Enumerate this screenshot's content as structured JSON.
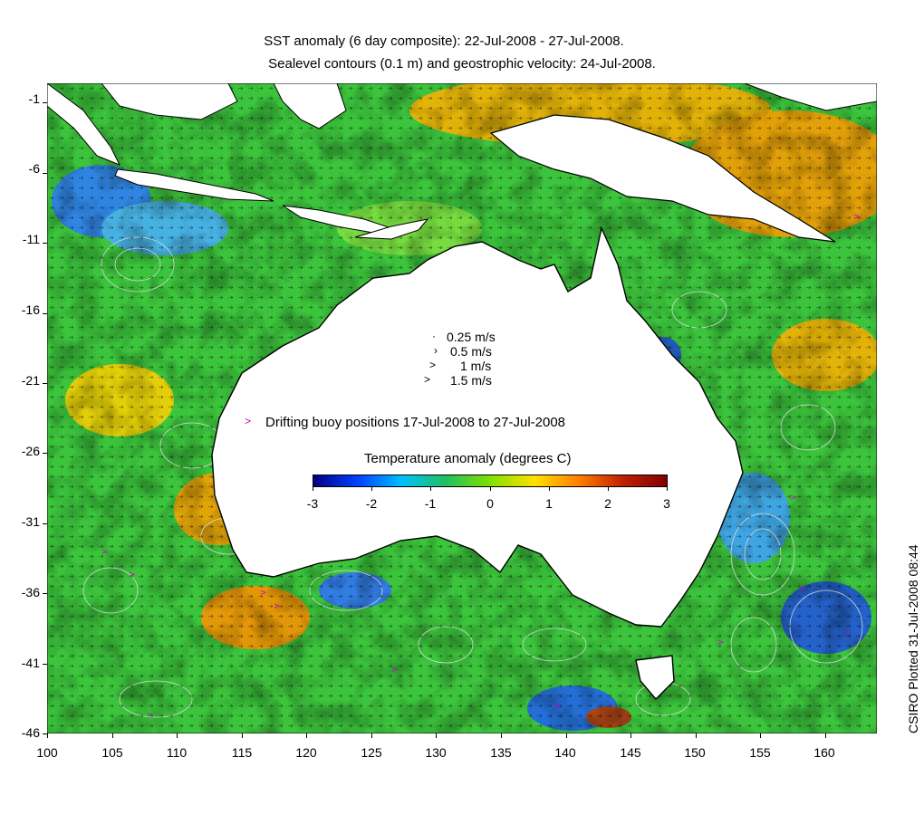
{
  "title_line1": "SST anomaly (6 day composite): 22-Jul-2008 - 27-Jul-2008.",
  "title_line2": "Sealevel contours (0.1 m) and geostrophic velocity: 24-Jul-2008.",
  "credit": "CSIRO Plotted 31-Jul-2008 08:44",
  "legend": {
    "speeds": [
      "0.25 m/s",
      "0.5 m/s",
      "1 m/s",
      "1.5 m/s"
    ],
    "buoy_marker": ">",
    "buoy_text": "Drifting buoy positions 17-Jul-2008 to 27-Jul-2008",
    "buoy_color": "#cc00cc"
  },
  "colorbar": {
    "title": "Temperature anomaly (degrees C)",
    "ticks": [
      "-3",
      "-2",
      "-1",
      "0",
      "1",
      "2",
      "3"
    ],
    "colors": [
      "#000080",
      "#0040ff",
      "#00c0ff",
      "#20c060",
      "#80e000",
      "#ffe000",
      "#ff8000",
      "#c02000",
      "#800000"
    ]
  },
  "axes": {
    "x_ticks": [
      "100",
      "105",
      "110",
      "115",
      "120",
      "125",
      "130",
      "135",
      "140",
      "145",
      "150",
      "155",
      "160"
    ],
    "y_ticks": [
      "-1",
      "-6",
      "-11",
      "-16",
      "-21",
      "-26",
      "-31",
      "-36",
      "-41",
      "-46"
    ],
    "lon_range": [
      100,
      164
    ],
    "lat_range": [
      -46,
      0
    ]
  },
  "map_colors": {
    "ocean_base": "#3cc43c",
    "land": "#ffffff",
    "coast": "#000000",
    "contour": "#e0e0e0"
  }
}
